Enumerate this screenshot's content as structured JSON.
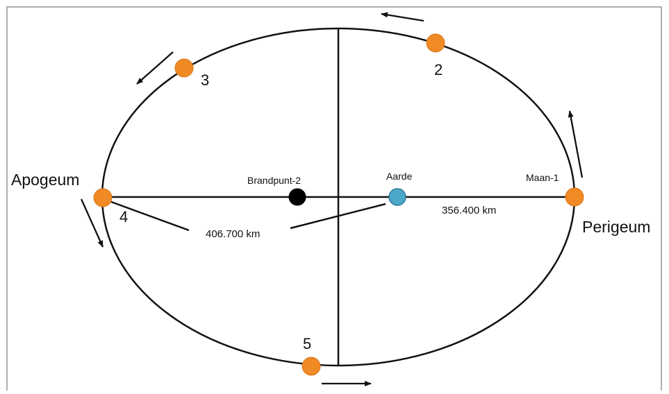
{
  "labels": {
    "apogee": "Apogeum",
    "perigee": "Perigeum",
    "focus2": "Brandpunt-2",
    "earth": "Aarde",
    "moon1": "Maan-1",
    "dist_apogee": "406.700 km",
    "dist_perigee": "356.400 km",
    "pos2": "2",
    "pos3": "3",
    "pos4": "4",
    "pos5": "5"
  },
  "colors": {
    "moon": "#f08a24",
    "earth": "#4ca8c8",
    "focus": "#000000",
    "line": "#111111",
    "border": "#7a7a7a"
  }
}
